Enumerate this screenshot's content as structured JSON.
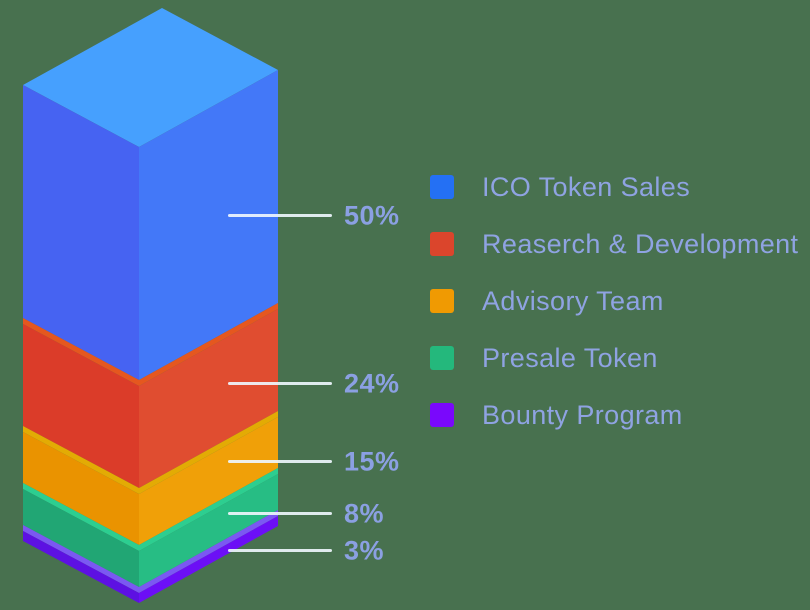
{
  "background_color": "#48714F",
  "text_color": "#8FA3E2",
  "pointer_line_color": "#EEF5FC",
  "chart_data": {
    "type": "bar",
    "subtype": "isometric-3d-stacked-single-column",
    "title": "",
    "legend_position": "right",
    "categories": [
      "ICO Token Sales",
      "Reaserch & Development",
      "Advisory Team",
      "Presale Token",
      "Bounty Program"
    ],
    "values": [
      50,
      24,
      15,
      8,
      3
    ],
    "value_labels": [
      "50%",
      "24%",
      "15%",
      "8%",
      "3%"
    ],
    "series": [
      {
        "label": "ICO Token Sales",
        "value": 50,
        "value_label": "50%",
        "swatch_color": "#2470F4",
        "face_top": "#46A0FE",
        "face_left": "#4663F2",
        "face_right": "#4378F8",
        "bevel": ""
      },
      {
        "label": "Reaserch & Development",
        "value": 24,
        "value_label": "24%",
        "swatch_color": "#DB452C",
        "face_top": "",
        "face_left": "#DB3C29",
        "face_right": "#E04D30",
        "bevel": "#E5571F"
      },
      {
        "label": "Advisory Team",
        "value": 15,
        "value_label": "15%",
        "swatch_color": "#F09A02",
        "face_top": "",
        "face_left": "#EA9300",
        "face_right": "#F0A008",
        "bevel": "#E3AB04"
      },
      {
        "label": "Presale Token",
        "value": 8,
        "value_label": "8%",
        "swatch_color": "#24B87C",
        "face_top": "",
        "face_left": "#21A674",
        "face_right": "#27BD84",
        "bevel": "#2DCE90"
      },
      {
        "label": "Bounty Program",
        "value": 3,
        "value_label": "3%",
        "swatch_color": "#7A08FC",
        "face_top": "",
        "face_left": "#5D11E2",
        "face_right": "#6C0FF6",
        "bevel": "#7B58F2"
      }
    ]
  }
}
